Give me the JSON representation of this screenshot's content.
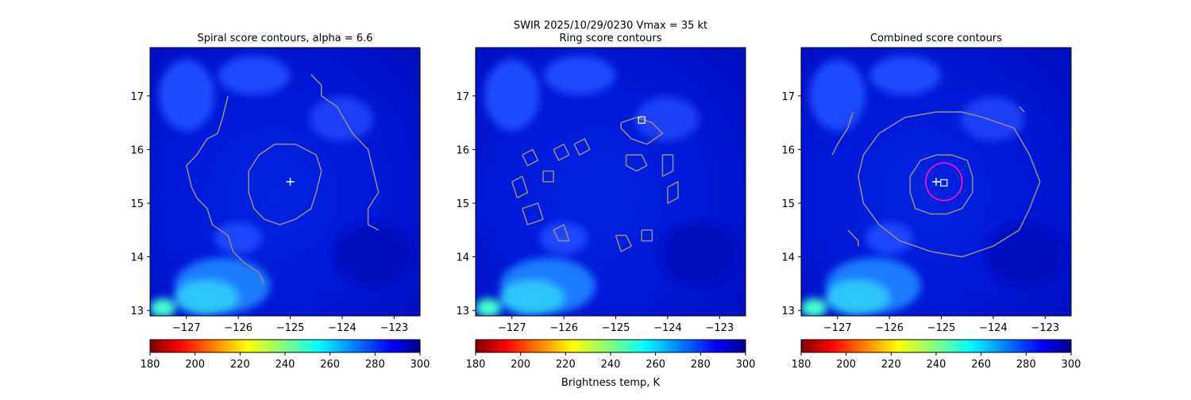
{
  "figure": {
    "suptitle_line1": "SWIR  2025/10/29/0230    Vmax = 35 kt",
    "colorbar_label": "Brightness temp, K"
  },
  "chart_data": [
    {
      "type": "heatmap",
      "title": "Spiral score contours, alpha =  6.6",
      "xlim": [
        -127.7,
        -122.5
      ],
      "ylim": [
        12.9,
        17.9
      ],
      "xticks": [
        -127,
        -126,
        -125,
        -124,
        -123
      ],
      "xtick_labels": [
        "−127",
        "−126",
        "−125",
        "−124",
        "−123"
      ],
      "yticks": [
        13,
        14,
        15,
        16,
        17
      ],
      "ytick_labels": [
        "13",
        "14",
        "15",
        "16",
        "17"
      ],
      "colormap": "jet",
      "color_range": [
        180,
        300
      ],
      "colorbar_ticks": [
        "180",
        "200",
        "220",
        "240",
        "260",
        "280",
        "300"
      ],
      "center_marker": {
        "symbol": "plus",
        "lon": -125.0,
        "lat": 15.4
      },
      "contour_color": "#8a8a8a",
      "contours": [
        [
          [
            -124.7,
            16.0
          ],
          [
            -124.5,
            15.9
          ],
          [
            -124.4,
            15.6
          ],
          [
            -124.5,
            15.2
          ],
          [
            -124.6,
            14.9
          ],
          [
            -124.9,
            14.7
          ],
          [
            -125.2,
            14.6
          ],
          [
            -125.5,
            14.7
          ],
          [
            -125.7,
            14.9
          ],
          [
            -125.8,
            15.2
          ],
          [
            -125.8,
            15.6
          ],
          [
            -125.6,
            15.9
          ],
          [
            -125.3,
            16.1
          ],
          [
            -124.9,
            16.1
          ],
          [
            -124.7,
            16.0
          ]
        ],
        [
          [
            -124.6,
            17.4
          ],
          [
            -124.4,
            17.2
          ],
          [
            -124.4,
            17.0
          ],
          [
            -124.1,
            16.8
          ],
          [
            -123.8,
            16.3
          ],
          [
            -123.5,
            16.0
          ],
          [
            -123.4,
            15.6
          ],
          [
            -123.3,
            15.2
          ],
          [
            -123.5,
            14.9
          ],
          [
            -123.5,
            14.6
          ],
          [
            -123.3,
            14.5
          ]
        ],
        [
          [
            -126.2,
            17.0
          ],
          [
            -126.3,
            16.6
          ],
          [
            -126.4,
            16.3
          ],
          [
            -126.6,
            16.2
          ],
          [
            -126.8,
            15.9
          ],
          [
            -127.0,
            15.7
          ],
          [
            -126.9,
            15.3
          ],
          [
            -126.8,
            15.1
          ],
          [
            -126.6,
            14.9
          ],
          [
            -126.5,
            14.6
          ],
          [
            -126.2,
            14.4
          ],
          [
            -126.1,
            14.1
          ],
          [
            -125.9,
            13.9
          ],
          [
            -125.6,
            13.7
          ],
          [
            -125.5,
            13.5
          ]
        ]
      ]
    },
    {
      "type": "heatmap",
      "title": "Ring score contours",
      "xlim": [
        -127.7,
        -122.5
      ],
      "ylim": [
        12.9,
        17.9
      ],
      "xticks": [
        -127,
        -126,
        -125,
        -124,
        -123
      ],
      "xtick_labels": [
        "−127",
        "−126",
        "−125",
        "−124",
        "−123"
      ],
      "yticks": [
        13,
        14,
        15,
        16,
        17
      ],
      "ytick_labels": [
        "13",
        "14",
        "15",
        "16",
        "17"
      ],
      "colormap": "jet",
      "color_range": [
        180,
        300
      ],
      "colorbar_ticks": [
        "180",
        "200",
        "220",
        "240",
        "260",
        "280",
        "300"
      ],
      "square_marker": {
        "symbol": "square",
        "lon": -124.5,
        "lat": 16.55
      },
      "contour_color": "#8a8a8a",
      "contours": [
        [
          [
            -124.9,
            16.5
          ],
          [
            -124.6,
            16.6
          ],
          [
            -124.3,
            16.5
          ],
          [
            -124.1,
            16.3
          ],
          [
            -124.4,
            16.1
          ],
          [
            -124.7,
            16.2
          ],
          [
            -124.9,
            16.4
          ],
          [
            -124.9,
            16.5
          ]
        ],
        [
          [
            -125.8,
            16.1
          ],
          [
            -125.6,
            16.2
          ],
          [
            -125.5,
            16.0
          ],
          [
            -125.7,
            15.9
          ],
          [
            -125.8,
            16.1
          ]
        ],
        [
          [
            -126.2,
            16.0
          ],
          [
            -126.0,
            16.1
          ],
          [
            -125.9,
            15.9
          ],
          [
            -126.1,
            15.8
          ],
          [
            -126.2,
            16.0
          ]
        ],
        [
          [
            -126.8,
            15.9
          ],
          [
            -126.6,
            16.0
          ],
          [
            -126.5,
            15.8
          ],
          [
            -126.7,
            15.7
          ],
          [
            -126.8,
            15.9
          ]
        ],
        [
          [
            -124.8,
            15.9
          ],
          [
            -124.5,
            15.9
          ],
          [
            -124.4,
            15.7
          ],
          [
            -124.6,
            15.6
          ],
          [
            -124.8,
            15.7
          ],
          [
            -124.8,
            15.9
          ]
        ],
        [
          [
            -124.1,
            15.9
          ],
          [
            -123.9,
            15.9
          ],
          [
            -123.9,
            15.6
          ],
          [
            -124.1,
            15.5
          ],
          [
            -124.1,
            15.9
          ]
        ],
        [
          [
            -126.4,
            15.6
          ],
          [
            -126.2,
            15.6
          ],
          [
            -126.2,
            15.4
          ],
          [
            -126.4,
            15.4
          ],
          [
            -126.4,
            15.6
          ]
        ],
        [
          [
            -127.0,
            15.4
          ],
          [
            -126.8,
            15.5
          ],
          [
            -126.7,
            15.2
          ],
          [
            -126.9,
            15.1
          ],
          [
            -127.0,
            15.4
          ]
        ],
        [
          [
            -124.0,
            15.3
          ],
          [
            -123.8,
            15.4
          ],
          [
            -123.8,
            15.1
          ],
          [
            -124.0,
            15.0
          ],
          [
            -124.0,
            15.3
          ]
        ],
        [
          [
            -126.8,
            14.9
          ],
          [
            -126.5,
            15.0
          ],
          [
            -126.4,
            14.7
          ],
          [
            -126.7,
            14.6
          ],
          [
            -126.8,
            14.9
          ]
        ],
        [
          [
            -126.2,
            14.5
          ],
          [
            -126.0,
            14.6
          ],
          [
            -125.9,
            14.3
          ],
          [
            -126.1,
            14.3
          ],
          [
            -126.2,
            14.5
          ]
        ],
        [
          [
            -125.0,
            14.4
          ],
          [
            -124.8,
            14.4
          ],
          [
            -124.7,
            14.2
          ],
          [
            -124.9,
            14.1
          ],
          [
            -125.0,
            14.4
          ]
        ],
        [
          [
            -124.5,
            14.5
          ],
          [
            -124.3,
            14.5
          ],
          [
            -124.3,
            14.3
          ],
          [
            -124.5,
            14.3
          ],
          [
            -124.5,
            14.5
          ]
        ]
      ]
    },
    {
      "type": "heatmap",
      "title": "Combined score contours",
      "xlim": [
        -127.7,
        -122.5
      ],
      "ylim": [
        12.9,
        17.9
      ],
      "xticks": [
        -127,
        -126,
        -125,
        -124,
        -123
      ],
      "xtick_labels": [
        "−127",
        "−126",
        "−125",
        "−124",
        "−123"
      ],
      "yticks": [
        13,
        14,
        15,
        16,
        17
      ],
      "ytick_labels": [
        "13",
        "14",
        "15",
        "16",
        "17"
      ],
      "colormap": "jet",
      "color_range": [
        180,
        300
      ],
      "colorbar_ticks": [
        "180",
        "200",
        "220",
        "240",
        "260",
        "280",
        "300"
      ],
      "center_marker": {
        "symbol": "plus",
        "lon": -125.1,
        "lat": 15.4
      },
      "square_marker": {
        "symbol": "square",
        "lon": -124.95,
        "lat": 15.38
      },
      "ring": {
        "lon": -124.95,
        "lat": 15.4,
        "radius_deg": 0.35,
        "color": "#e010d0"
      },
      "contour_color": "#8a8a8a",
      "contours": [
        [
          [
            -124.5,
            15.8
          ],
          [
            -124.4,
            15.5
          ],
          [
            -124.4,
            15.2
          ],
          [
            -124.6,
            14.9
          ],
          [
            -124.9,
            14.8
          ],
          [
            -125.2,
            14.8
          ],
          [
            -125.5,
            14.9
          ],
          [
            -125.6,
            15.2
          ],
          [
            -125.6,
            15.5
          ],
          [
            -125.4,
            15.8
          ],
          [
            -125.1,
            15.9
          ],
          [
            -124.8,
            15.9
          ],
          [
            -124.5,
            15.8
          ]
        ],
        [
          [
            -124.2,
            16.6
          ],
          [
            -123.6,
            16.4
          ],
          [
            -123.3,
            15.9
          ],
          [
            -123.1,
            15.4
          ],
          [
            -123.3,
            14.9
          ],
          [
            -123.5,
            14.5
          ],
          [
            -124.0,
            14.2
          ],
          [
            -124.6,
            14.0
          ],
          [
            -125.2,
            14.1
          ],
          [
            -125.8,
            14.3
          ],
          [
            -126.2,
            14.6
          ],
          [
            -126.5,
            15.0
          ],
          [
            -126.6,
            15.5
          ],
          [
            -126.5,
            15.9
          ],
          [
            -126.2,
            16.3
          ],
          [
            -125.7,
            16.6
          ],
          [
            -125.1,
            16.7
          ],
          [
            -124.6,
            16.7
          ],
          [
            -124.2,
            16.6
          ]
        ],
        [
          [
            -126.7,
            16.7
          ],
          [
            -126.8,
            16.4
          ],
          [
            -127.0,
            16.1
          ],
          [
            -127.1,
            15.9
          ]
        ],
        [
          [
            -126.8,
            14.5
          ],
          [
            -126.7,
            14.4
          ],
          [
            -126.6,
            14.3
          ],
          [
            -126.6,
            14.2
          ]
        ],
        [
          [
            -123.5,
            16.8
          ],
          [
            -123.4,
            16.7
          ]
        ]
      ]
    }
  ]
}
